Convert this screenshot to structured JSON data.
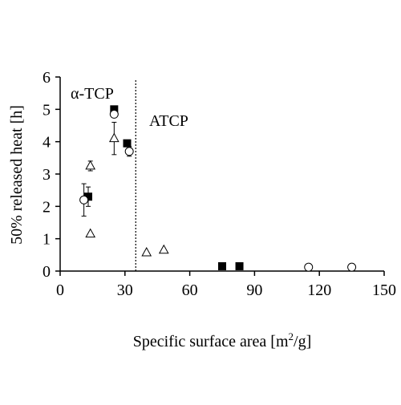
{
  "chart_data": {
    "type": "scatter",
    "xlabel": "Specific surface area [m",
    "xlabel_sup": "2",
    "xlabel_tail": "/g]",
    "ylabel": "50% released heat [h]",
    "xlim": [
      0,
      150
    ],
    "ylim": [
      0,
      6
    ],
    "x_ticks": [
      0,
      30,
      60,
      90,
      120,
      150
    ],
    "y_ticks": [
      0,
      1,
      2,
      3,
      4,
      5,
      6
    ],
    "grid": false,
    "legend": "none",
    "annotations": [
      {
        "text": "α-TCP"
      },
      {
        "text": "ATCP"
      }
    ],
    "divider_x": 35,
    "series": [
      {
        "marker": "square-filled",
        "points": [
          {
            "x": 13,
            "y": 2.3,
            "err": 0.3
          },
          {
            "x": 25,
            "y": 5.0
          },
          {
            "x": 31,
            "y": 3.95
          },
          {
            "x": 75,
            "y": 0.15
          },
          {
            "x": 83,
            "y": 0.15
          }
        ]
      },
      {
        "marker": "circle-open",
        "points": [
          {
            "x": 11,
            "y": 2.2,
            "err": 0.5
          },
          {
            "x": 25,
            "y": 4.85
          },
          {
            "x": 32,
            "y": 3.7,
            "err": 0.15
          },
          {
            "x": 115,
            "y": 0.12
          },
          {
            "x": 135,
            "y": 0.12
          }
        ]
      },
      {
        "marker": "triangle-open",
        "points": [
          {
            "x": 14,
            "y": 3.25,
            "err": 0.15
          },
          {
            "x": 14,
            "y": 1.15
          },
          {
            "x": 25,
            "y": 4.1,
            "err": 0.5
          },
          {
            "x": 40,
            "y": 0.57
          },
          {
            "x": 48,
            "y": 0.65
          }
        ]
      }
    ]
  }
}
